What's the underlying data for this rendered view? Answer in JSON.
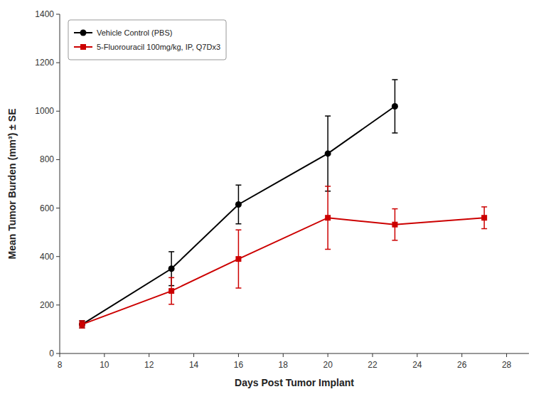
{
  "chart_data": {
    "type": "line",
    "xlabel": "Days Post Tumor Implant",
    "ylabel": "Mean Tumor Burden (mm³) ± SE",
    "xlim": [
      8,
      29
    ],
    "ylim": [
      0,
      1400
    ],
    "xticks": [
      8,
      10,
      12,
      14,
      16,
      18,
      20,
      22,
      24,
      26,
      28
    ],
    "yticks": [
      0,
      200,
      400,
      600,
      800,
      1000,
      1200,
      1400
    ],
    "grid": false,
    "legend": "upper left",
    "series": [
      {
        "name": "Vehicle Control (PBS)",
        "color": "#000000",
        "marker": "circle",
        "x": [
          9,
          13,
          16,
          20,
          23
        ],
        "values": [
          120,
          350,
          615,
          825,
          1020
        ],
        "errors": [
          15,
          70,
          80,
          155,
          110
        ]
      },
      {
        "name": "5-Fluorouracil 100mg/kg, IP, Q7Dx3",
        "color": "#cc0000",
        "marker": "square",
        "x": [
          9,
          13,
          16,
          20,
          23,
          27
        ],
        "values": [
          120,
          258,
          390,
          560,
          532,
          560
        ],
        "errors_low": [
          15,
          55,
          120,
          130,
          65,
          45
        ],
        "errors_high": [
          15,
          55,
          120,
          130,
          65,
          45
        ]
      }
    ]
  }
}
